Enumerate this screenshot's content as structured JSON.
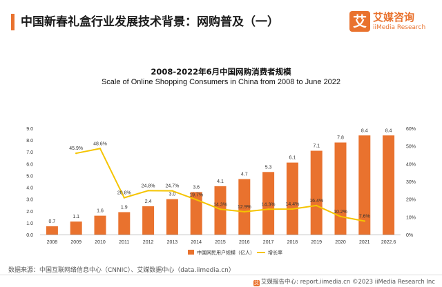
{
  "page": {
    "title": "中国新春礼盒行业发展技术背景：网购普及（一）"
  },
  "logo": {
    "mark": "艾",
    "cn": "艾媒咨询",
    "en": "iiMedia Research"
  },
  "colors": {
    "accent": "#e9722e",
    "bar": "#e9722e",
    "line": "#f5c400",
    "axis_text": "#333333"
  },
  "chart_data": {
    "type": "bar",
    "title": "2008-2022年6月中国网购消费者规模",
    "subtitle": "Scale of Online Shopping Consumers in China from 2008 to June 2022",
    "categories": [
      "2008",
      "2009",
      "2010",
      "2011",
      "2012",
      "2013",
      "2014",
      "2015",
      "2016",
      "2017",
      "2018",
      "2019",
      "2020",
      "2021",
      "2022.6"
    ],
    "series": [
      {
        "name": "中国网民用户规模（亿人）",
        "type": "bar",
        "axis": "left",
        "values": [
          0.7,
          1.1,
          1.6,
          1.9,
          2.4,
          3.0,
          3.6,
          4.1,
          4.7,
          5.3,
          6.1,
          7.1,
          7.8,
          8.4,
          8.4
        ],
        "labels": [
          "0.7",
          "1.1",
          "1.6",
          "1.9",
          "2.4",
          "3.0",
          "3.6",
          "4.1",
          "4.7",
          "5.3",
          "6.1",
          "7.1",
          "7.8",
          "8.4",
          "8.4"
        ]
      },
      {
        "name": "增长率",
        "type": "line",
        "axis": "right",
        "values": [
          null,
          45.9,
          48.6,
          20.8,
          24.8,
          24.7,
          19.7,
          14.3,
          12.9,
          14.3,
          14.4,
          16.4,
          10.2,
          7.6,
          null
        ],
        "labels": [
          null,
          "45.9%",
          "48.6%",
          "20.8%",
          "24.8%",
          "24.7%",
          "19.7%",
          "14.3%",
          "12.9%",
          "14.3%",
          "14.4%",
          "16.4%",
          "10.2%",
          "7.6%",
          null
        ]
      }
    ],
    "y_left": {
      "min": 0,
      "max": 9,
      "step": 1,
      "ticks": [
        "0.0",
        "1.0",
        "2.0",
        "3.0",
        "4.0",
        "5.0",
        "6.0",
        "7.0",
        "8.0",
        "9.0"
      ]
    },
    "y_right": {
      "min": 0,
      "max": 60,
      "step": 10,
      "ticks": [
        "0%",
        "10%",
        "20%",
        "30%",
        "40%",
        "50%",
        "60%"
      ]
    },
    "grid": false,
    "legend_position": "bottom-center"
  },
  "source": "数据来源：中国互联网络信息中心（CNNIC）、艾媒数据中心（data.iimedia.cn）",
  "footer": {
    "icon": "艾",
    "text": "艾媒报告中心: report.iimedia.cn  ©2023  iiMedia Research  Inc"
  }
}
